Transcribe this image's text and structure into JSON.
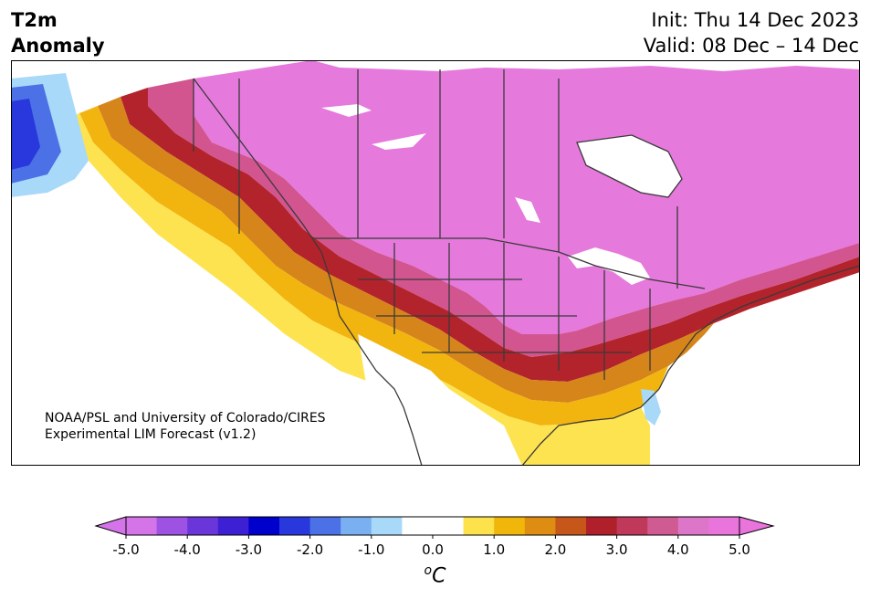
{
  "title": {
    "line1": "T2m",
    "line2": "Anomaly"
  },
  "dates": {
    "init": "Init: Thu 14 Dec 2023",
    "valid": "Valid: 08 Dec – 14 Dec"
  },
  "credit": {
    "line1": "NOAA/PSL and University of Colorado/CIRES",
    "line2": "Experimental LIM Forecast (v1.2)"
  },
  "colorbar": {
    "colors": [
      "#d474e8",
      "#9d52e3",
      "#6a36da",
      "#3d1fd4",
      "#0000cd",
      "#2838dc",
      "#4c71e6",
      "#7ab0f2",
      "#a8d9f9",
      "#ffffff",
      "#ffffff",
      "#fde24c",
      "#f1b60a",
      "#de8c12",
      "#c7561a",
      "#b0202a",
      "#c0385a",
      "#d05a92",
      "#dd76c9",
      "#e874dc"
    ],
    "labels": [
      "-5.0",
      "-4.0",
      "-3.0",
      "-2.0",
      "-1.0",
      "0.0",
      "1.0",
      "2.0",
      "3.0",
      "4.0",
      "5.0"
    ],
    "units": "o",
    "units_symbol": "C"
  }
}
